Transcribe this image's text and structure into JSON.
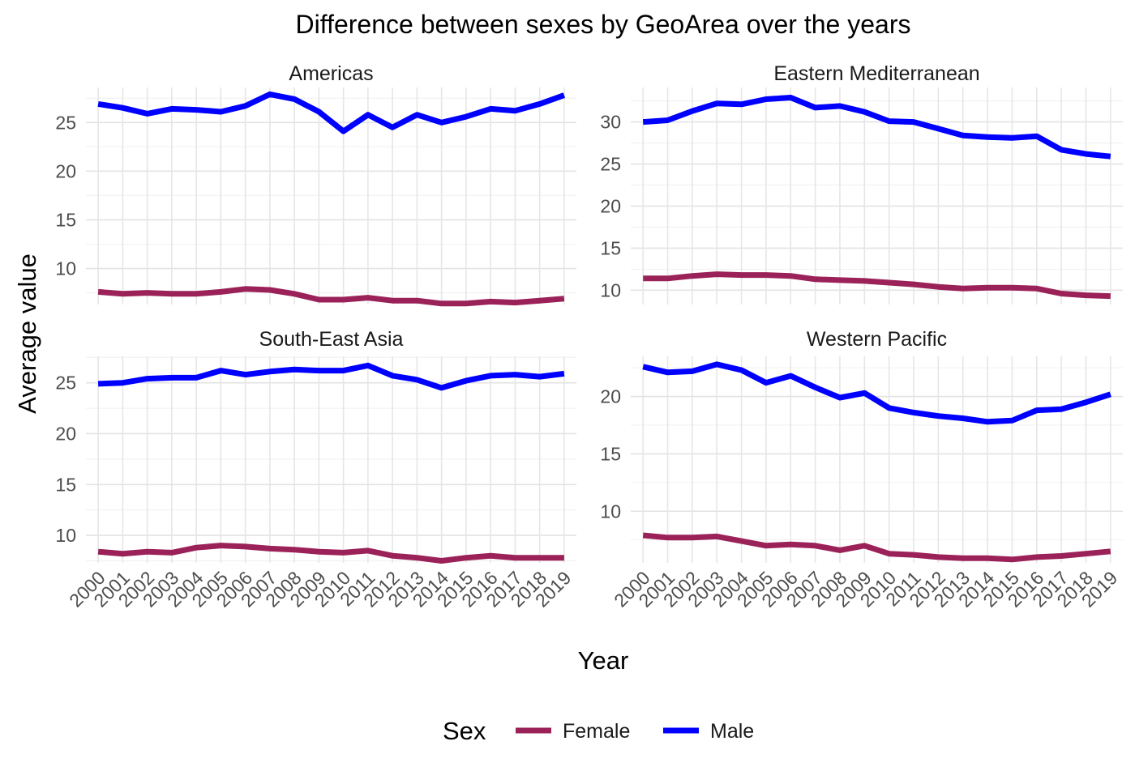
{
  "chart_data": {
    "type": "line",
    "title": "Difference between sexes by GeoArea over the years",
    "xlabel": "Year",
    "ylabel": "Average value",
    "years": [
      "2000",
      "2001",
      "2002",
      "2003",
      "2004",
      "2005",
      "2006",
      "2007",
      "2008",
      "2009",
      "2010",
      "2011",
      "2012",
      "2013",
      "2014",
      "2015",
      "2016",
      "2017",
      "2018",
      "2019"
    ],
    "legend": {
      "title": "Sex",
      "position": "bottom",
      "entries": [
        {
          "name": "Female",
          "color": "#9b2259"
        },
        {
          "name": "Male",
          "color": "#0000ff"
        }
      ]
    },
    "grid": true,
    "panels": [
      {
        "name": "Americas",
        "ylim": [
          6.3,
          28.6
        ],
        "yticks": [
          10,
          15,
          20,
          25
        ],
        "series": [
          {
            "name": "Female",
            "values": [
              7.6,
              7.4,
              7.5,
              7.4,
              7.4,
              7.6,
              7.9,
              7.8,
              7.4,
              6.8,
              6.8,
              7.0,
              6.7,
              6.7,
              6.4,
              6.4,
              6.6,
              6.5,
              6.7,
              6.9
            ]
          },
          {
            "name": "Male",
            "values": [
              26.9,
              26.5,
              25.9,
              26.4,
              26.3,
              26.1,
              26.7,
              27.9,
              27.4,
              26.1,
              24.1,
              25.8,
              24.5,
              25.8,
              25.0,
              25.6,
              26.4,
              26.2,
              26.9,
              27.8
            ]
          }
        ]
      },
      {
        "name": "Eastern Mediterranean",
        "ylim": [
          8.3,
          34.1
        ],
        "yticks": [
          10,
          15,
          20,
          25,
          30
        ],
        "series": [
          {
            "name": "Female",
            "values": [
              11.4,
              11.4,
              11.7,
              11.9,
              11.8,
              11.8,
              11.7,
              11.3,
              11.2,
              11.1,
              10.9,
              10.7,
              10.4,
              10.2,
              10.3,
              10.3,
              10.2,
              9.6,
              9.4,
              9.3
            ]
          },
          {
            "name": "Male",
            "values": [
              30.0,
              30.2,
              31.3,
              32.2,
              32.1,
              32.7,
              32.9,
              31.7,
              31.9,
              31.2,
              30.1,
              30.0,
              29.2,
              28.4,
              28.2,
              28.1,
              28.3,
              26.7,
              26.2,
              25.9
            ]
          }
        ]
      },
      {
        "name": "South-East Asia",
        "ylim": [
          7.3,
          27.6
        ],
        "yticks": [
          10,
          15,
          20,
          25
        ],
        "series": [
          {
            "name": "Female",
            "values": [
              8.4,
              8.2,
              8.4,
              8.3,
              8.8,
              9.0,
              8.9,
              8.7,
              8.6,
              8.4,
              8.3,
              8.5,
              8.0,
              7.8,
              7.5,
              7.8,
              8.0,
              7.8,
              7.8,
              7.8
            ]
          },
          {
            "name": "Male",
            "values": [
              24.9,
              25.0,
              25.4,
              25.5,
              25.5,
              26.2,
              25.8,
              26.1,
              26.3,
              26.2,
              26.2,
              26.7,
              25.7,
              25.3,
              24.5,
              25.2,
              25.7,
              25.8,
              25.6,
              25.9
            ]
          }
        ]
      },
      {
        "name": "Western Pacific",
        "ylim": [
          5.5,
          23.5
        ],
        "yticks": [
          10,
          15,
          20
        ],
        "series": [
          {
            "name": "Female",
            "values": [
              7.9,
              7.7,
              7.7,
              7.8,
              7.4,
              7.0,
              7.1,
              7.0,
              6.6,
              7.0,
              6.3,
              6.2,
              6.0,
              5.9,
              5.9,
              5.8,
              6.0,
              6.1,
              6.3,
              6.5
            ]
          },
          {
            "name": "Male",
            "values": [
              22.6,
              22.1,
              22.2,
              22.8,
              22.3,
              21.2,
              21.8,
              20.8,
              19.9,
              20.3,
              19.0,
              18.6,
              18.3,
              18.1,
              17.8,
              17.9,
              18.8,
              18.9,
              19.5,
              20.2
            ]
          }
        ]
      }
    ]
  }
}
